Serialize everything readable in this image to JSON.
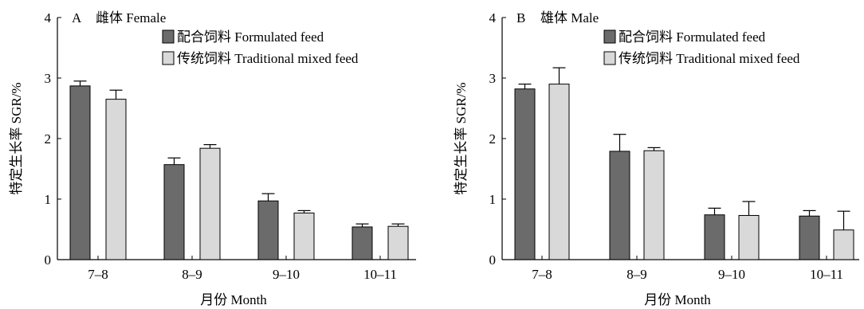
{
  "chart_data": [
    {
      "type": "bar",
      "panel_label": "A",
      "title": "雌体 Female",
      "xlabel": "月份 Month",
      "ylabel": "特定生长率 SGR/%",
      "ylim": [
        0,
        4
      ],
      "yticks": [
        "0",
        "1",
        "2",
        "3",
        "4"
      ],
      "categories": [
        "7–8",
        "8–9",
        "9–10",
        "10–11"
      ],
      "legend_position": "top-right",
      "grid": false,
      "series": [
        {
          "name": "配合饲料 Formulated feed",
          "color": "#6b6b6b",
          "values": [
            2.87,
            1.57,
            0.97,
            0.54
          ],
          "errors": [
            0.08,
            0.11,
            0.12,
            0.05
          ]
        },
        {
          "name": "传统饲料 Traditional mixed feed",
          "color": "#d9d9d9",
          "values": [
            2.65,
            1.84,
            0.77,
            0.55
          ],
          "errors": [
            0.15,
            0.06,
            0.04,
            0.04
          ]
        }
      ]
    },
    {
      "type": "bar",
      "panel_label": "B",
      "title": "雄体 Male",
      "xlabel": "月份 Month",
      "ylabel": "特定生长率 SGR/%",
      "ylim": [
        0,
        4
      ],
      "yticks": [
        "0",
        "1",
        "2",
        "3",
        "4"
      ],
      "categories": [
        "7–8",
        "8–9",
        "9–10",
        "10–11"
      ],
      "legend_position": "top-right",
      "grid": false,
      "series": [
        {
          "name": "配合饲料 Formulated feed",
          "color": "#6b6b6b",
          "values": [
            2.82,
            1.79,
            0.74,
            0.72
          ],
          "errors": [
            0.08,
            0.28,
            0.11,
            0.09
          ]
        },
        {
          "name": "传统饲料 Traditional mixed feed",
          "color": "#d9d9d9",
          "values": [
            2.9,
            1.8,
            0.73,
            0.49
          ],
          "errors": [
            0.27,
            0.05,
            0.23,
            0.31
          ]
        }
      ]
    }
  ]
}
